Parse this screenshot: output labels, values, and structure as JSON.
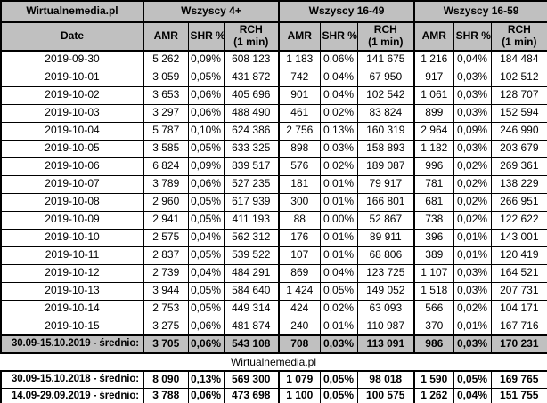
{
  "chart_data": {
    "type": "table",
    "title": "Wirtualnemedia.pl",
    "labels": {
      "corner": "Wirtualnemedia.pl",
      "date": "Date",
      "amr": "AMR",
      "shr": "SHR %",
      "rch_line1": "RCH",
      "rch_line2": "(1 min)"
    },
    "column_groups": [
      "Wszyscy 4+",
      "Wszyscy 16-49",
      "Wszyscy 16-59"
    ],
    "sub_columns": [
      "AMR",
      "SHR %",
      "RCH (1 min)"
    ],
    "rows": [
      {
        "date": "2019-09-30",
        "values": [
          "5 262",
          "0,09%",
          "608 123",
          "1 183",
          "0,06%",
          "141 675",
          "1 216",
          "0,04%",
          "184 484"
        ]
      },
      {
        "date": "2019-10-01",
        "values": [
          "3 059",
          "0,05%",
          "431 872",
          "742",
          "0,04%",
          "67 950",
          "917",
          "0,03%",
          "102 512"
        ]
      },
      {
        "date": "2019-10-02",
        "values": [
          "3 653",
          "0,06%",
          "405 696",
          "901",
          "0,04%",
          "102 542",
          "1 061",
          "0,03%",
          "128 707"
        ]
      },
      {
        "date": "2019-10-03",
        "values": [
          "3 297",
          "0,06%",
          "488 490",
          "461",
          "0,02%",
          "83 824",
          "899",
          "0,03%",
          "152 594"
        ]
      },
      {
        "date": "2019-10-04",
        "values": [
          "5 787",
          "0,10%",
          "624 386",
          "2 756",
          "0,13%",
          "160 319",
          "2 964",
          "0,09%",
          "246 990"
        ]
      },
      {
        "date": "2019-10-05",
        "values": [
          "3 585",
          "0,05%",
          "633 325",
          "898",
          "0,03%",
          "158 893",
          "1 182",
          "0,03%",
          "203 679"
        ]
      },
      {
        "date": "2019-10-06",
        "values": [
          "6 824",
          "0,09%",
          "839 517",
          "576",
          "0,02%",
          "189 087",
          "996",
          "0,02%",
          "269 361"
        ]
      },
      {
        "date": "2019-10-07",
        "values": [
          "3 789",
          "0,06%",
          "527 235",
          "181",
          "0,01%",
          "79 917",
          "781",
          "0,02%",
          "138 229"
        ]
      },
      {
        "date": "2019-10-08",
        "values": [
          "2 960",
          "0,05%",
          "617 939",
          "300",
          "0,01%",
          "166 801",
          "681",
          "0,02%",
          "266 951"
        ]
      },
      {
        "date": "2019-10-09",
        "values": [
          "2 941",
          "0,05%",
          "411 193",
          "88",
          "0,00%",
          "52 867",
          "738",
          "0,02%",
          "122 622"
        ]
      },
      {
        "date": "2019-10-10",
        "values": [
          "2 575",
          "0,04%",
          "562 312",
          "176",
          "0,01%",
          "89 911",
          "396",
          "0,01%",
          "143 001"
        ]
      },
      {
        "date": "2019-10-11",
        "values": [
          "2 837",
          "0,05%",
          "539 522",
          "107",
          "0,01%",
          "68 806",
          "389",
          "0,01%",
          "120 419"
        ]
      },
      {
        "date": "2019-10-12",
        "values": [
          "2 739",
          "0,04%",
          "484 291",
          "869",
          "0,04%",
          "123 725",
          "1 107",
          "0,03%",
          "164 521"
        ]
      },
      {
        "date": "2019-10-13",
        "values": [
          "3 944",
          "0,05%",
          "584 640",
          "1 424",
          "0,05%",
          "149 052",
          "1 518",
          "0,03%",
          "207 731"
        ]
      },
      {
        "date": "2019-10-14",
        "values": [
          "2 753",
          "0,05%",
          "449 314",
          "424",
          "0,02%",
          "63 093",
          "566",
          "0,02%",
          "104 171"
        ]
      },
      {
        "date": "2019-10-15",
        "values": [
          "3 275",
          "0,06%",
          "481 874",
          "240",
          "0,01%",
          "110 987",
          "370",
          "0,01%",
          "167 716"
        ]
      }
    ],
    "summary_row": {
      "label": "30.09-15.10.2019 - średnio:",
      "values": [
        "3 705",
        "0,06%",
        "543 108",
        "708",
        "0,03%",
        "113 091",
        "986",
        "0,03%",
        "170 231"
      ]
    },
    "watermark": "Wirtualnemedia.pl",
    "comparison_rows": [
      {
        "label": "30.09-15.10.2018 - średnio:",
        "values": [
          "8 090",
          "0,13%",
          "569 300",
          "1 079",
          "0,05%",
          "98 018",
          "1 590",
          "0,05%",
          "169 765"
        ]
      },
      {
        "label": "14.09-29.09.2019 - średnio:",
        "values": [
          "3 788",
          "0,06%",
          "473 698",
          "1 100",
          "0,05%",
          "100 575",
          "1 262",
          "0,04%",
          "151 755"
        ]
      }
    ],
    "colors": {
      "header_bg": "#C0C0C0",
      "border": "#000000",
      "row_bg": "#FFFFFF",
      "text": "#000000"
    }
  }
}
